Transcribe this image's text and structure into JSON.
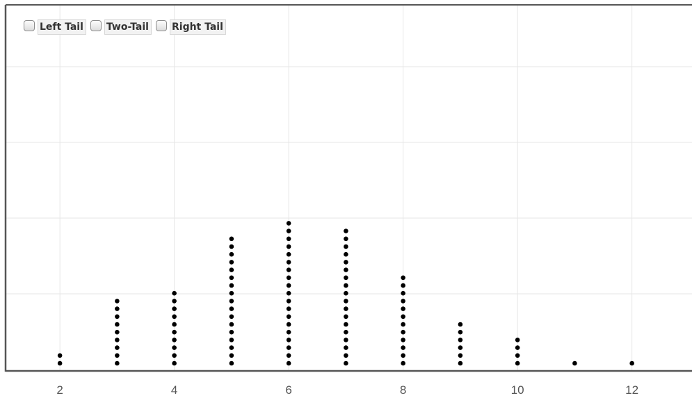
{
  "controls": {
    "options": [
      {
        "label": "Left Tail",
        "checked": false
      },
      {
        "label": "Two-Tail",
        "checked": false
      },
      {
        "label": "Right Tail",
        "checked": false
      }
    ]
  },
  "colors": {
    "dot": "#000000",
    "grid": "#e6e6e6",
    "frame": "#555555",
    "tick_text": "#555555"
  },
  "chart_data": {
    "type": "dotplot",
    "title": "",
    "xlabel": "",
    "ylabel": "",
    "x_ticks": [
      2,
      4,
      6,
      8,
      10,
      12
    ],
    "xlim": [
      1.05,
      13.05
    ],
    "grid": true,
    "values": [
      2,
      3,
      4,
      5,
      6,
      7,
      8,
      9,
      10,
      11,
      12
    ],
    "counts": [
      2,
      9,
      10,
      17,
      19,
      18,
      12,
      6,
      4,
      1,
      1
    ]
  }
}
